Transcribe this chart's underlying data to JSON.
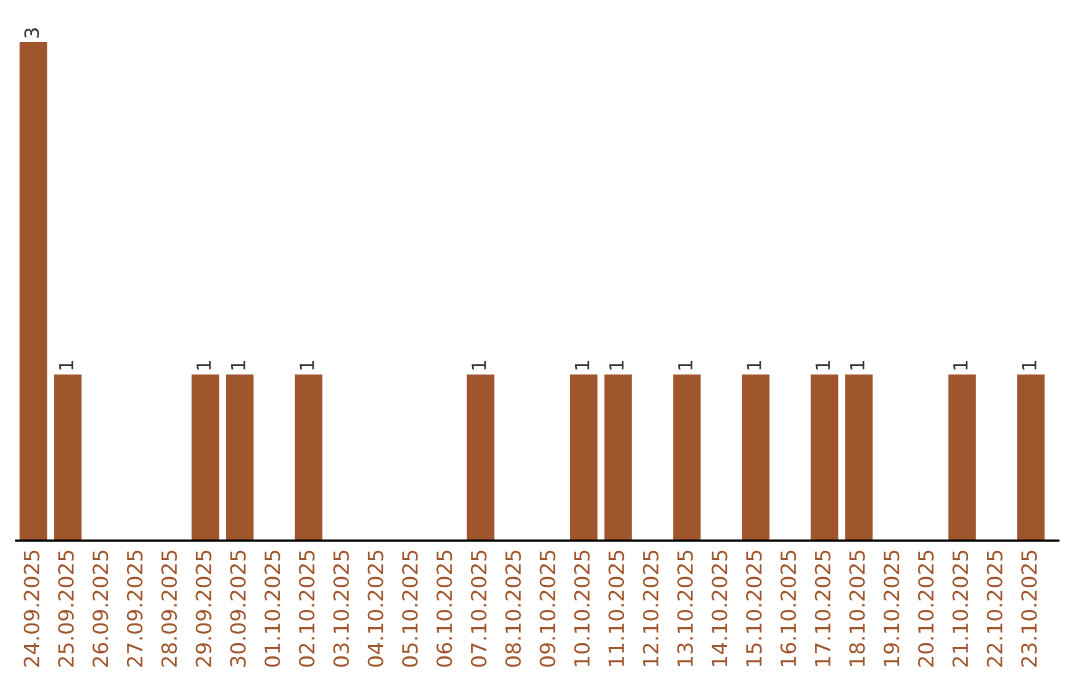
{
  "chart_data": {
    "type": "bar",
    "categories": [
      "24.09.2025",
      "25.09.2025",
      "26.09.2025",
      "27.09.2025",
      "28.09.2025",
      "29.09.2025",
      "30.09.2025",
      "01.10.2025",
      "02.10.2025",
      "03.10.2025",
      "04.10.2025",
      "05.10.2025",
      "06.10.2025",
      "07.10.2025",
      "08.10.2025",
      "09.10.2025",
      "10.10.2025",
      "11.10.2025",
      "12.10.2025",
      "13.10.2025",
      "14.10.2025",
      "15.10.2025",
      "16.10.2025",
      "17.10.2025",
      "18.10.2025",
      "19.10.2025",
      "20.10.2025",
      "21.10.2025",
      "22.10.2025",
      "23.10.2025"
    ],
    "values": [
      3,
      1,
      0,
      0,
      0,
      1,
      1,
      0,
      1,
      0,
      0,
      0,
      0,
      1,
      0,
      0,
      1,
      1,
      0,
      1,
      0,
      1,
      0,
      1,
      1,
      0,
      0,
      1,
      0,
      1
    ],
    "value_labels": [
      "3",
      "1",
      null,
      null,
      null,
      "1",
      "1",
      null,
      "1",
      null,
      null,
      null,
      null,
      "1",
      null,
      null,
      "1",
      "1",
      null,
      "1",
      null,
      "1",
      null,
      "1",
      "1",
      null,
      null,
      "1",
      null,
      "1"
    ],
    "color": "#a0562c",
    "grid": false,
    "legend": false
  }
}
